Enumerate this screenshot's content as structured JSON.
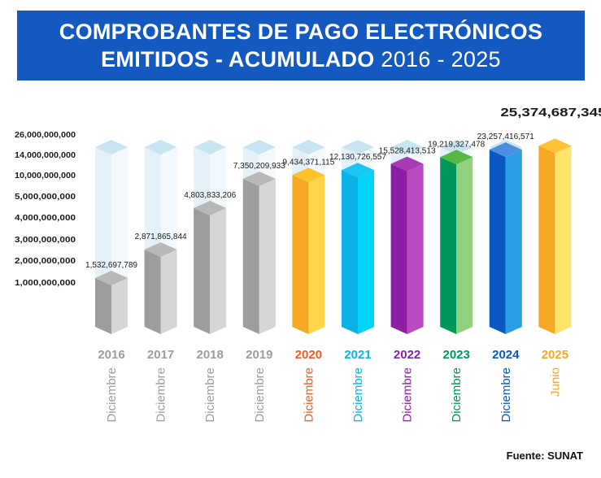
{
  "header": {
    "title_line1": "COMPROBANTES DE PAGO ELECTRÓNICOS",
    "title_line2_bold": "EMITIDOS - ACUMULADO",
    "title_line2_regular": "2016 - 2025"
  },
  "source": "Fuente: SUNAT",
  "chart_data": {
    "type": "bar",
    "title": "COMPROBANTES DE PAGO ELECTRÓNICOS EMITIDOS - ACUMULADO 2016 - 2025",
    "categories": [
      "2016",
      "2017",
      "2018",
      "2019",
      "2020",
      "2021",
      "2022",
      "2023",
      "2024",
      "2025"
    ],
    "month_labels": [
      "Diciembre",
      "Diciembre",
      "Diciembre",
      "Diciembre",
      "Diciembre",
      "Diciembre",
      "Diciembre",
      "Diciembre",
      "Diciembre",
      "Junio"
    ],
    "values": [
      1532697789,
      2871865844,
      4803833206,
      7350209933,
      9434371115,
      12130726557,
      15528413513,
      19219327478,
      23257416571,
      25374687345
    ],
    "value_labels": [
      "1,532,697,789",
      "2,871,865,844",
      "4,803,833,206",
      "7,350,209,933",
      "9,434,371,115",
      "12,130,726,557",
      "15,528,413,513",
      "19,219,327,478",
      "23,257,416,571",
      "25,374,687,345"
    ],
    "y_tick_labels": [
      "26,000,000,000",
      "14,000,000,000",
      "10,000,000,000",
      "5,000,000,000",
      "4,000,000,000",
      "3,000,000,000",
      "2,000,000,000",
      "1,000,000,000"
    ],
    "scale": "non-linear (irregular tick spacing)",
    "grid": false,
    "legend": "none",
    "colors": {
      "front": [
        "#9d9d9d",
        "#9d9d9d",
        "#9d9d9d",
        "#9d9d9d",
        "#f7a823",
        "#0bb2e8",
        "#8c1ea5",
        "#00985a",
        "#0b58c3",
        "#f7a823"
      ],
      "side": [
        "#d6d6d6",
        "#d6d6d6",
        "#d6d6d6",
        "#d6d6d6",
        "#ffd64a",
        "#00d4f8",
        "#b84bbf",
        "#93d07f",
        "#2b9ee6",
        "#ffe36b"
      ],
      "top": [
        "#b8b8b8",
        "#b8b8b8",
        "#b8b8b8",
        "#b8b8b8",
        "#ffc22a",
        "#18c7f2",
        "#a63bb3",
        "#57b944",
        "#4b8fe0",
        "#ffc33a"
      ],
      "label": [
        "#9d9d9d",
        "#9d9d9d",
        "#9d9d9d",
        "#9d9d9d",
        "#f15a22",
        "#0bb2e8",
        "#8c1ea5",
        "#00985a",
        "#0b58c3",
        "#f7a823"
      ],
      "ghost_front": "#e4f1f8",
      "ghost_side": "#f2f8fc",
      "ghost_top": "#c9e5f2"
    }
  }
}
